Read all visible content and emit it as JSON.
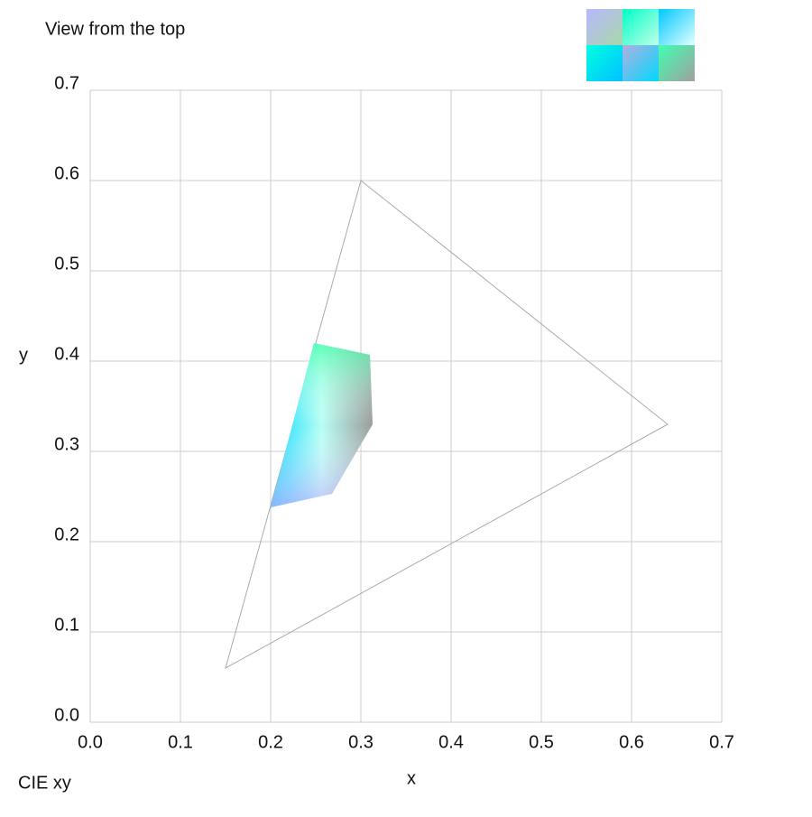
{
  "chart_data": {
    "type": "polygon",
    "title": "View from the top",
    "subtitle": "CIE xy",
    "x_label": "x",
    "y_label": "y",
    "xlim": [
      0,
      0.7
    ],
    "ylim": [
      0,
      0.7
    ],
    "xticks": [
      {
        "value": 0,
        "label": "0.0"
      },
      0.1,
      0.2,
      0.3,
      0.4,
      0.5,
      0.6,
      0.7
    ],
    "yticks": [
      {
        "value": 0,
        "label": "0.0"
      },
      0.1,
      0.2,
      0.3,
      0.4,
      0.5,
      0.6,
      0.7
    ],
    "grid": true,
    "series": [
      {
        "color": "#aaaaaa",
        "fill": false,
        "x": [
          0.3,
          0.64,
          0.15
        ],
        "y": [
          0.6,
          0.33,
          0.06
        ]
      },
      {
        "fill": true,
        "x": [
          0.248,
          0.31,
          0.313,
          0.268,
          0.2
        ],
        "y": [
          0.42,
          0.407,
          0.33,
          0.253,
          0.238
        ]
      }
    ]
  }
}
